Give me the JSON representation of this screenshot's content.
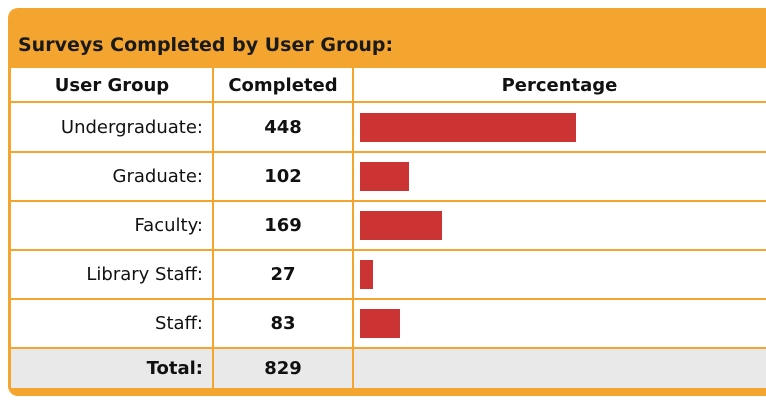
{
  "header": {
    "title": "Surveys Completed by User Group:"
  },
  "table": {
    "columns": [
      "User Group",
      "Completed",
      "Percentage"
    ],
    "rows": [
      [
        "Undergraduate:",
        448
      ],
      [
        "Graduate:",
        102
      ],
      [
        "Faculty:",
        169
      ],
      [
        "Library Staff:",
        27
      ],
      [
        "Staff:",
        83
      ]
    ],
    "total": [
      "Total:",
      829
    ],
    "bar_color": "#cc3333"
  }
}
